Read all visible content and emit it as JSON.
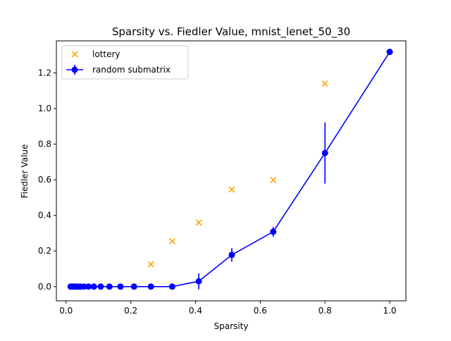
{
  "chart_data": {
    "type": "scatter",
    "title": "Sparsity vs. Fiedler Value, mnist_lenet_50_30",
    "xlabel": "Sparsity",
    "ylabel": "Fiedler Value",
    "xlim": [
      -0.03,
      1.05
    ],
    "ylim": [
      -0.08,
      1.38
    ],
    "x_ticks": [
      0.0,
      0.2,
      0.4,
      0.6,
      0.8,
      1.0
    ],
    "x_tick_labels": [
      "0.0",
      "0.2",
      "0.4",
      "0.6",
      "0.8",
      "1.0"
    ],
    "y_ticks": [
      0.0,
      0.2,
      0.4,
      0.6,
      0.8,
      1.0,
      1.2
    ],
    "y_tick_labels": [
      "0.0",
      "0.2",
      "0.4",
      "0.6",
      "0.8",
      "1.0",
      "1.2"
    ],
    "grid": false,
    "legend_position": "top-left",
    "series": [
      {
        "name": "lottery",
        "kind": "scatter",
        "marker": "x",
        "color": "#FFA500",
        "x": [
          0.262,
          0.328,
          0.41,
          0.512,
          0.64,
          0.8
        ],
        "y": [
          0.125,
          0.255,
          0.36,
          0.545,
          0.598,
          1.14
        ]
      },
      {
        "name": "random submatrix",
        "kind": "errorbar-line",
        "marker": "circle",
        "color": "#0000FF",
        "x": [
          0.014,
          0.018,
          0.023,
          0.028,
          0.035,
          0.044,
          0.055,
          0.069,
          0.086,
          0.107,
          0.134,
          0.168,
          0.21,
          0.262,
          0.328,
          0.41,
          0.512,
          0.64,
          0.8,
          1.0
        ],
        "y": [
          0.0,
          0.0,
          0.0,
          0.0,
          0.0,
          0.0,
          0.0,
          0.0,
          0.0,
          0.0,
          0.0,
          0.0,
          0.0,
          0.0,
          0.0,
          0.03,
          0.178,
          0.308,
          0.75,
          1.318
        ],
        "yerr": [
          0,
          0,
          0,
          0,
          0,
          0,
          0,
          0,
          0,
          0,
          0,
          0,
          0,
          0,
          0,
          0.045,
          0.038,
          0.028,
          0.172,
          0.005
        ]
      }
    ]
  }
}
